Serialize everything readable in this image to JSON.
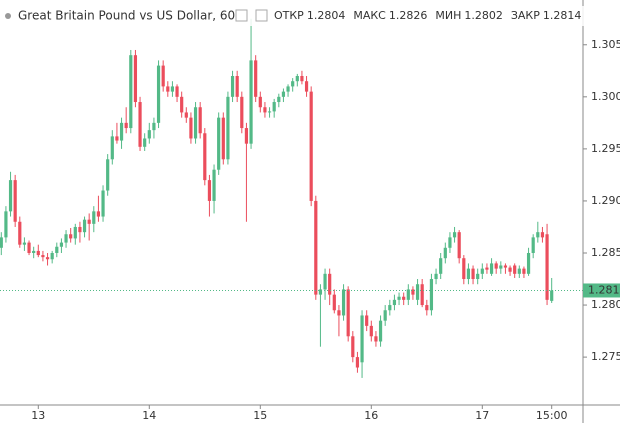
{
  "chart_data": {
    "type": "candlestick",
    "title": "Great Britain Pound vs US Dollar, 60",
    "ohlc_labels": [
      "ОТКР",
      "МАКС",
      "МИН",
      "ЗАКР"
    ],
    "up_color": "#53b987",
    "down_color": "#eb4d5c",
    "ylim": [
      1.2704,
      1.3093
    ],
    "yticks": [
      {
        "value": 1.305,
        "label": "1.3050"
      },
      {
        "value": 1.3,
        "label": "1.3000"
      },
      {
        "value": 1.295,
        "label": "1.2950"
      },
      {
        "value": 1.29,
        "label": "1.2900"
      },
      {
        "value": 1.285,
        "label": "1.2850"
      },
      {
        "value": 1.28,
        "label": "1.2800"
      },
      {
        "value": 1.275,
        "label": "1.2750"
      }
    ],
    "xlim": [
      -0.28,
      125.77
    ],
    "xticks": [
      {
        "value": 8,
        "label": "13"
      },
      {
        "value": 32,
        "label": "14"
      },
      {
        "value": 56,
        "label": "15"
      },
      {
        "value": 80,
        "label": "16"
      },
      {
        "value": 104,
        "label": "17"
      },
      {
        "value": 119,
        "label": "15:00"
      }
    ],
    "ohlc": [
      [
        1.2855,
        1.287,
        1.2848,
        1.2865
      ],
      [
        1.2865,
        1.2895,
        1.286,
        1.289
      ],
      [
        1.289,
        1.2928,
        1.2885,
        1.292
      ],
      [
        1.292,
        1.2925,
        1.2875,
        1.288
      ],
      [
        1.288,
        1.2885,
        1.2855,
        1.2858
      ],
      [
        1.2858,
        1.2865,
        1.2852,
        1.286
      ],
      [
        1.286,
        1.2862,
        1.2848,
        1.285
      ],
      [
        1.285,
        1.2856,
        1.2845,
        1.2852
      ],
      [
        1.2852,
        1.2858,
        1.2846,
        1.2848
      ],
      [
        1.2848,
        1.2852,
        1.2842,
        1.2846
      ],
      [
        1.2846,
        1.285,
        1.2838,
        1.2844
      ],
      [
        1.2844,
        1.2852,
        1.284,
        1.285
      ],
      [
        1.285,
        1.286,
        1.2846,
        1.2856
      ],
      [
        1.2856,
        1.2864,
        1.285,
        1.286
      ],
      [
        1.286,
        1.2872,
        1.2855,
        1.2868
      ],
      [
        1.2868,
        1.2874,
        1.286,
        1.2864
      ],
      [
        1.2864,
        1.2878,
        1.2858,
        1.2875
      ],
      [
        1.2875,
        1.288,
        1.286,
        1.287
      ],
      [
        1.287,
        1.2885,
        1.2865,
        1.2882
      ],
      [
        1.2882,
        1.2888,
        1.2862,
        1.2878
      ],
      [
        1.2878,
        1.2895,
        1.287,
        1.289
      ],
      [
        1.289,
        1.2905,
        1.288,
        1.2885
      ],
      [
        1.2885,
        1.2915,
        1.288,
        1.291
      ],
      [
        1.291,
        1.2945,
        1.2905,
        1.294
      ],
      [
        1.294,
        1.2968,
        1.2935,
        1.2962
      ],
      [
        1.2962,
        1.2975,
        1.2955,
        1.2958
      ],
      [
        1.2958,
        1.298,
        1.295,
        1.2975
      ],
      [
        1.2975,
        1.299,
        1.2965,
        1.297
      ],
      [
        1.297,
        1.3045,
        1.2965,
        1.304
      ],
      [
        1.304,
        1.3045,
        1.299,
        1.2995
      ],
      [
        1.2995,
        1.3,
        1.2948,
        1.2952
      ],
      [
        1.2952,
        1.2965,
        1.2948,
        1.296
      ],
      [
        1.296,
        1.2975,
        1.2955,
        1.2968
      ],
      [
        1.2968,
        1.298,
        1.296,
        1.2975
      ],
      [
        1.2975,
        1.3035,
        1.297,
        1.303
      ],
      [
        1.303,
        1.3035,
        1.3005,
        1.301
      ],
      [
        1.301,
        1.3015,
        1.3,
        1.3005
      ],
      [
        1.3005,
        1.3015,
        1.3,
        1.301
      ],
      [
        1.301,
        1.3012,
        1.2995,
        1.3
      ],
      [
        1.3,
        1.3005,
        1.298,
        1.2985
      ],
      [
        1.2985,
        1.299,
        1.2975,
        1.298
      ],
      [
        1.298,
        1.2985,
        1.2955,
        1.296
      ],
      [
        1.296,
        1.2995,
        1.2955,
        1.299
      ],
      [
        1.299,
        1.2995,
        1.296,
        1.2965
      ],
      [
        1.2965,
        1.297,
        1.2915,
        1.292
      ],
      [
        1.292,
        1.2925,
        1.2885,
        1.29
      ],
      [
        1.29,
        1.2935,
        1.2888,
        1.293
      ],
      [
        1.293,
        1.2985,
        1.2925,
        1.298
      ],
      [
        1.298,
        1.2985,
        1.2935,
        1.294
      ],
      [
        1.294,
        1.3005,
        1.2935,
        1.3
      ],
      [
        1.3,
        1.3025,
        1.2995,
        1.302
      ],
      [
        1.302,
        1.3025,
        1.2995,
        1.3
      ],
      [
        1.3,
        1.3005,
        1.2965,
        1.297
      ],
      [
        1.297,
        1.2975,
        1.288,
        1.2955
      ],
      [
        1.2955,
        1.3075,
        1.295,
        1.3035
      ],
      [
        1.3035,
        1.304,
        1.2995,
        1.3
      ],
      [
        1.3,
        1.3005,
        1.2985,
        1.299
      ],
      [
        1.299,
        1.2995,
        1.298,
        1.2985
      ],
      [
        1.2985,
        1.299,
        1.298,
        1.2986
      ],
      [
        1.2986,
        1.2998,
        1.298,
        1.2995
      ],
      [
        1.2995,
        1.3003,
        1.299,
        1.3
      ],
      [
        1.3,
        1.3008,
        1.2995,
        1.3005
      ],
      [
        1.3005,
        1.3012,
        1.3,
        1.301
      ],
      [
        1.301,
        1.3018,
        1.3005,
        1.3015
      ],
      [
        1.3015,
        1.3022,
        1.301,
        1.302
      ],
      [
        1.302,
        1.3025,
        1.3012,
        1.3015
      ],
      [
        1.3015,
        1.302,
        1.3,
        1.3005
      ],
      [
        1.3005,
        1.301,
        1.2895,
        1.29
      ],
      [
        1.29,
        1.2905,
        1.2805,
        1.281
      ],
      [
        1.281,
        1.282,
        1.276,
        1.2815
      ],
      [
        1.2815,
        1.2835,
        1.2805,
        1.283
      ],
      [
        1.283,
        1.2835,
        1.28,
        1.281
      ],
      [
        1.281,
        1.2815,
        1.2792,
        1.2795
      ],
      [
        1.2795,
        1.28,
        1.277,
        1.279
      ],
      [
        1.279,
        1.282,
        1.2785,
        1.2815
      ],
      [
        1.2815,
        1.2818,
        1.2765,
        1.277
      ],
      [
        1.277,
        1.2775,
        1.2745,
        1.275
      ],
      [
        1.275,
        1.2755,
        1.2735,
        1.274
      ],
      [
        1.2745,
        1.2795,
        1.273,
        1.279
      ],
      [
        1.279,
        1.2795,
        1.2775,
        1.278
      ],
      [
        1.278,
        1.2785,
        1.2765,
        1.277
      ],
      [
        1.277,
        1.2775,
        1.276,
        1.2765
      ],
      [
        1.2765,
        1.279,
        1.276,
        1.2785
      ],
      [
        1.2785,
        1.28,
        1.278,
        1.2795
      ],
      [
        1.2795,
        1.2805,
        1.279,
        1.28
      ],
      [
        1.28,
        1.281,
        1.2795,
        1.2805
      ],
      [
        1.2805,
        1.2812,
        1.28,
        1.2808
      ],
      [
        1.2808,
        1.2812,
        1.28,
        1.2805
      ],
      [
        1.2805,
        1.282,
        1.28,
        1.2815
      ],
      [
        1.2815,
        1.2818,
        1.2805,
        1.281
      ],
      [
        1.2805,
        1.2825,
        1.28,
        1.282
      ],
      [
        1.282,
        1.2825,
        1.2798,
        1.28
      ],
      [
        1.28,
        1.2805,
        1.279,
        1.2795
      ],
      [
        1.2795,
        1.283,
        1.279,
        1.2825
      ],
      [
        1.2825,
        1.2835,
        1.282,
        1.283
      ],
      [
        1.283,
        1.285,
        1.2825,
        1.2845
      ],
      [
        1.2845,
        1.286,
        1.284,
        1.2855
      ],
      [
        1.2855,
        1.287,
        1.285,
        1.2865
      ],
      [
        1.2865,
        1.2875,
        1.286,
        1.287
      ],
      [
        1.287,
        1.2872,
        1.284,
        1.2845
      ],
      [
        1.2845,
        1.2848,
        1.282,
        1.2825
      ],
      [
        1.2825,
        1.284,
        1.282,
        1.2835
      ],
      [
        1.2835,
        1.2838,
        1.282,
        1.2825
      ],
      [
        1.2825,
        1.2835,
        1.282,
        1.283
      ],
      [
        1.283,
        1.284,
        1.2825,
        1.2835
      ],
      [
        1.2836,
        1.284,
        1.283,
        1.2834
      ],
      [
        1.283,
        1.2845,
        1.2828,
        1.284
      ],
      [
        1.284,
        1.2842,
        1.283,
        1.2835
      ],
      [
        1.2835,
        1.2842,
        1.283,
        1.2838
      ],
      [
        1.2838,
        1.284,
        1.283,
        1.2836
      ],
      [
        1.2836,
        1.2838,
        1.2828,
        1.2832
      ],
      [
        1.2838,
        1.284,
        1.2826,
        1.283
      ],
      [
        1.283,
        1.2838,
        1.2826,
        1.2835
      ],
      [
        1.2835,
        1.2837,
        1.2826,
        1.283
      ],
      [
        1.283,
        1.2855,
        1.2828,
        1.285
      ],
      [
        1.285,
        1.2868,
        1.2845,
        1.2865
      ],
      [
        1.2865,
        1.288,
        1.286,
        1.287
      ],
      [
        1.287,
        1.2875,
        1.286,
        1.2865
      ],
      [
        1.2868,
        1.2878,
        1.28,
        1.2805
      ],
      [
        1.2804,
        1.2826,
        1.2802,
        1.2814
      ]
    ]
  }
}
